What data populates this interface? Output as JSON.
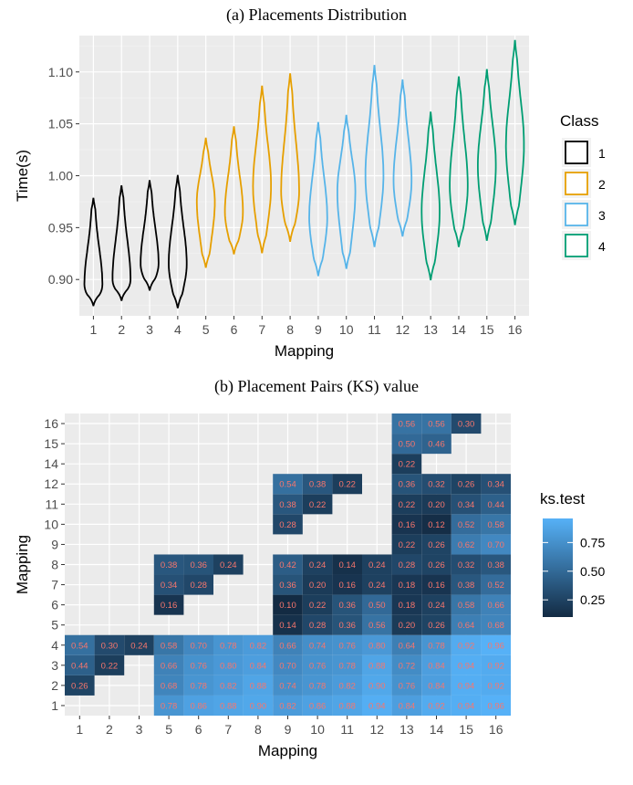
{
  "captions": {
    "a": "(a) Placements Distribution",
    "b": "(b) Placement Pairs (KS) value"
  },
  "chart_data": [
    {
      "type": "violin",
      "xlabel": "Mapping",
      "ylabel": "Time(s)",
      "ylim": [
        0.865,
        1.135
      ],
      "yticks": [
        0.9,
        0.95,
        1.0,
        1.05,
        1.1
      ],
      "ytick_labels": [
        "0.90",
        "0.95",
        "1.00",
        "1.05",
        "1.10"
      ],
      "categories": [
        "1",
        "2",
        "3",
        "4",
        "5",
        "6",
        "7",
        "8",
        "9",
        "10",
        "11",
        "12",
        "13",
        "14",
        "15",
        "16"
      ],
      "class": [
        1,
        1,
        1,
        1,
        2,
        2,
        2,
        2,
        3,
        3,
        3,
        3,
        4,
        4,
        4,
        4
      ],
      "min": [
        0.875,
        0.88,
        0.89,
        0.873,
        0.912,
        0.925,
        0.926,
        0.937,
        0.904,
        0.911,
        0.932,
        0.942,
        0.9,
        0.932,
        0.938,
        0.953
      ],
      "max": [
        0.978,
        0.99,
        0.995,
        1.0,
        1.036,
        1.047,
        1.086,
        1.098,
        1.051,
        1.058,
        1.106,
        1.092,
        1.061,
        1.095,
        1.102,
        1.13
      ],
      "mode": [
        0.895,
        0.9,
        0.915,
        0.915,
        0.975,
        0.965,
        0.99,
        0.985,
        0.96,
        0.985,
        1.0,
        0.995,
        0.965,
        0.99,
        1.01,
        1.03
      ],
      "legend": {
        "title": "Class",
        "entries": [
          {
            "label": "1",
            "color": "#000000"
          },
          {
            "label": "2",
            "color": "#E69F00"
          },
          {
            "label": "3",
            "color": "#56B4E9"
          },
          {
            "label": "4",
            "color": "#009E73"
          }
        ],
        "position": "right"
      },
      "grid": true,
      "panel_color": "#EBEBEB"
    },
    {
      "type": "heatmap",
      "xlabel": "Mapping",
      "ylabel": "Mapping",
      "x_categories": [
        "1",
        "2",
        "3",
        "5",
        "6",
        "7",
        "8",
        "9",
        "10",
        "11",
        "12",
        "13",
        "14",
        "15",
        "16"
      ],
      "y_categories": [
        "1",
        "2",
        "3",
        "4",
        "5",
        "6",
        "7",
        "8",
        "9",
        "10",
        "11",
        "12",
        "14",
        "15",
        "16"
      ],
      "cells": [
        [
          "1",
          "2",
          "0.26"
        ],
        [
          "1",
          "3",
          "0.44"
        ],
        [
          "1",
          "4",
          "0.54"
        ],
        [
          "2",
          "3",
          "0.22"
        ],
        [
          "2",
          "4",
          "0.30"
        ],
        [
          "3",
          "4",
          "0.24"
        ],
        [
          "5",
          "1",
          "0.78"
        ],
        [
          "5",
          "2",
          "0.68"
        ],
        [
          "5",
          "3",
          "0.66"
        ],
        [
          "5",
          "4",
          "0.58"
        ],
        [
          "5",
          "6",
          "0.16"
        ],
        [
          "5",
          "7",
          "0.34"
        ],
        [
          "5",
          "8",
          "0.38"
        ],
        [
          "6",
          "1",
          "0.86"
        ],
        [
          "6",
          "2",
          "0.78"
        ],
        [
          "6",
          "3",
          "0.76"
        ],
        [
          "6",
          "4",
          "0.70"
        ],
        [
          "6",
          "7",
          "0.28"
        ],
        [
          "6",
          "8",
          "0.36"
        ],
        [
          "7",
          "1",
          "0.88"
        ],
        [
          "7",
          "2",
          "0.82"
        ],
        [
          "7",
          "3",
          "0.80"
        ],
        [
          "7",
          "4",
          "0.78"
        ],
        [
          "7",
          "8",
          "0.24"
        ],
        [
          "8",
          "1",
          "0.90"
        ],
        [
          "8",
          "2",
          "0.88"
        ],
        [
          "8",
          "3",
          "0.84"
        ],
        [
          "8",
          "4",
          "0.82"
        ],
        [
          "9",
          "1",
          "0.82"
        ],
        [
          "9",
          "2",
          "0.74"
        ],
        [
          "9",
          "3",
          "0.70"
        ],
        [
          "9",
          "4",
          "0.66"
        ],
        [
          "9",
          "5",
          "0.14"
        ],
        [
          "9",
          "6",
          "0.10"
        ],
        [
          "9",
          "7",
          "0.36"
        ],
        [
          "9",
          "8",
          "0.42"
        ],
        [
          "9",
          "10",
          "0.28"
        ],
        [
          "9",
          "11",
          "0.38"
        ],
        [
          "9",
          "12",
          "0.54"
        ],
        [
          "10",
          "1",
          "0.86"
        ],
        [
          "10",
          "2",
          "0.78"
        ],
        [
          "10",
          "3",
          "0.76"
        ],
        [
          "10",
          "4",
          "0.74"
        ],
        [
          "10",
          "5",
          "0.28"
        ],
        [
          "10",
          "6",
          "0.22"
        ],
        [
          "10",
          "7",
          "0.20"
        ],
        [
          "10",
          "8",
          "0.24"
        ],
        [
          "10",
          "11",
          "0.22"
        ],
        [
          "10",
          "12",
          "0.38"
        ],
        [
          "11",
          "1",
          "0.88"
        ],
        [
          "11",
          "2",
          "0.82"
        ],
        [
          "11",
          "3",
          "0.78"
        ],
        [
          "11",
          "4",
          "0.76"
        ],
        [
          "11",
          "5",
          "0.36"
        ],
        [
          "11",
          "6",
          "0.36"
        ],
        [
          "11",
          "7",
          "0.16"
        ],
        [
          "11",
          "8",
          "0.14"
        ],
        [
          "11",
          "12",
          "0.22"
        ],
        [
          "12",
          "1",
          "0.94"
        ],
        [
          "12",
          "2",
          "0.90"
        ],
        [
          "12",
          "3",
          "0.88"
        ],
        [
          "12",
          "4",
          "0.80"
        ],
        [
          "12",
          "5",
          "0.56"
        ],
        [
          "12",
          "6",
          "0.50"
        ],
        [
          "12",
          "7",
          "0.24"
        ],
        [
          "12",
          "8",
          "0.24"
        ],
        [
          "13",
          "1",
          "0.84"
        ],
        [
          "13",
          "2",
          "0.76"
        ],
        [
          "13",
          "3",
          "0.72"
        ],
        [
          "13",
          "4",
          "0.64"
        ],
        [
          "13",
          "5",
          "0.20"
        ],
        [
          "13",
          "6",
          "0.18"
        ],
        [
          "13",
          "7",
          "0.18"
        ],
        [
          "13",
          "8",
          "0.28"
        ],
        [
          "13",
          "9",
          "0.22"
        ],
        [
          "13",
          "10",
          "0.16"
        ],
        [
          "13",
          "11",
          "0.22"
        ],
        [
          "13",
          "12",
          "0.36"
        ],
        [
          "13",
          "14",
          "0.22"
        ],
        [
          "13",
          "15",
          "0.50"
        ],
        [
          "13",
          "16",
          "0.56"
        ],
        [
          "14",
          "1",
          "0.92"
        ],
        [
          "14",
          "2",
          "0.84"
        ],
        [
          "14",
          "3",
          "0.84"
        ],
        [
          "14",
          "4",
          "0.78"
        ],
        [
          "14",
          "5",
          "0.26"
        ],
        [
          "14",
          "6",
          "0.24"
        ],
        [
          "14",
          "7",
          "0.16"
        ],
        [
          "14",
          "8",
          "0.26"
        ],
        [
          "14",
          "9",
          "0.26"
        ],
        [
          "14",
          "10",
          "0.12"
        ],
        [
          "14",
          "11",
          "0.20"
        ],
        [
          "14",
          "12",
          "0.32"
        ],
        [
          "14",
          "15",
          "0.46"
        ],
        [
          "14",
          "16",
          "0.56"
        ],
        [
          "15",
          "1",
          "0.94"
        ],
        [
          "15",
          "2",
          "0.94"
        ],
        [
          "15",
          "3",
          "0.94"
        ],
        [
          "15",
          "4",
          "0.92"
        ],
        [
          "15",
          "5",
          "0.64"
        ],
        [
          "15",
          "6",
          "0.58"
        ],
        [
          "15",
          "7",
          "0.38"
        ],
        [
          "15",
          "8",
          "0.32"
        ],
        [
          "15",
          "9",
          "0.62"
        ],
        [
          "15",
          "10",
          "0.52"
        ],
        [
          "15",
          "11",
          "0.34"
        ],
        [
          "15",
          "12",
          "0.26"
        ],
        [
          "15",
          "16",
          "0.30"
        ],
        [
          "16",
          "1",
          "0.96"
        ],
        [
          "16",
          "2",
          "0.92"
        ],
        [
          "16",
          "3",
          "0.92"
        ],
        [
          "16",
          "4",
          "0.96"
        ],
        [
          "16",
          "5",
          "0.68"
        ],
        [
          "16",
          "6",
          "0.66"
        ],
        [
          "16",
          "7",
          "0.52"
        ],
        [
          "16",
          "8",
          "0.38"
        ],
        [
          "16",
          "9",
          "0.70"
        ],
        [
          "16",
          "10",
          "0.58"
        ],
        [
          "16",
          "11",
          "0.44"
        ],
        [
          "16",
          "12",
          "0.34"
        ]
      ],
      "legend": {
        "title": "ks.test",
        "ticks": [
          0.25,
          0.5,
          0.75
        ],
        "tick_labels": [
          "0.25",
          "0.50",
          "0.75"
        ],
        "range": [
          0.1,
          0.96
        ],
        "low_color": "#132B43",
        "high_color": "#56B1F7",
        "position": "right"
      },
      "label_color": "#F8766D",
      "grid": true,
      "panel_color": "#EBEBEB"
    }
  ]
}
